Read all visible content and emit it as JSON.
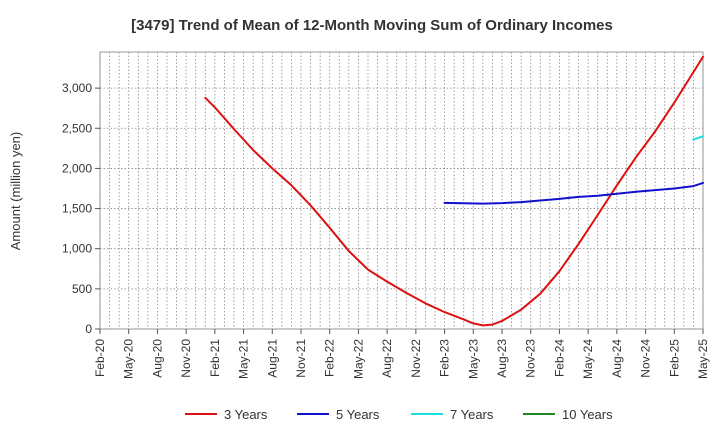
{
  "chart_data": {
    "type": "line",
    "title": "[3479]  Trend of Mean of 12-Month Moving Sum of Ordinary Incomes",
    "ylabel": "Amount (million yen)",
    "xlabel": "",
    "ylim": [
      0,
      3450
    ],
    "yticks": [
      0,
      500,
      1000,
      1500,
      2000,
      2500,
      3000
    ],
    "ytick_labels": [
      "0",
      "500",
      "1,000",
      "1,500",
      "2,000",
      "2,500",
      "3,000"
    ],
    "x_start": "2020-02",
    "x_end": "2025-05",
    "xtick_labels": [
      "Feb-20",
      "May-20",
      "Aug-20",
      "Nov-20",
      "Feb-21",
      "May-21",
      "Aug-21",
      "Nov-21",
      "Feb-22",
      "May-22",
      "Aug-22",
      "Nov-22",
      "Feb-23",
      "May-23",
      "Aug-23",
      "Nov-23",
      "Feb-24",
      "May-24",
      "Aug-24",
      "Nov-24",
      "Feb-25",
      "May-25"
    ],
    "grid": true,
    "legend_position": "bottom",
    "series": [
      {
        "name": "3 Years",
        "color": "#dd1111",
        "points": [
          [
            "2021-01",
            2880
          ],
          [
            "2021-02",
            2760
          ],
          [
            "2021-04",
            2490
          ],
          [
            "2021-06",
            2230
          ],
          [
            "2021-08",
            2000
          ],
          [
            "2021-10",
            1790
          ],
          [
            "2021-12",
            1540
          ],
          [
            "2022-02",
            1260
          ],
          [
            "2022-04",
            970
          ],
          [
            "2022-06",
            740
          ],
          [
            "2022-08",
            590
          ],
          [
            "2022-10",
            450
          ],
          [
            "2022-12",
            320
          ],
          [
            "2023-02",
            210
          ],
          [
            "2023-04",
            120
          ],
          [
            "2023-05",
            70
          ],
          [
            "2023-06",
            45
          ],
          [
            "2023-07",
            55
          ],
          [
            "2023-08",
            100
          ],
          [
            "2023-10",
            240
          ],
          [
            "2023-12",
            440
          ],
          [
            "2024-02",
            720
          ],
          [
            "2024-04",
            1060
          ],
          [
            "2024-06",
            1420
          ],
          [
            "2024-08",
            1790
          ],
          [
            "2024-10",
            2140
          ],
          [
            "2024-12",
            2460
          ],
          [
            "2025-02",
            2820
          ],
          [
            "2025-04",
            3200
          ],
          [
            "2025-05",
            3390
          ]
        ]
      },
      {
        "name": "5 Years",
        "color": "#1111cc",
        "points": [
          [
            "2023-02",
            1570
          ],
          [
            "2023-04",
            1565
          ],
          [
            "2023-06",
            1562
          ],
          [
            "2023-08",
            1568
          ],
          [
            "2023-10",
            1580
          ],
          [
            "2023-12",
            1600
          ],
          [
            "2024-02",
            1620
          ],
          [
            "2024-04",
            1645
          ],
          [
            "2024-06",
            1660
          ],
          [
            "2024-08",
            1685
          ],
          [
            "2024-10",
            1710
          ],
          [
            "2024-12",
            1730
          ],
          [
            "2025-02",
            1750
          ],
          [
            "2025-04",
            1780
          ],
          [
            "2025-05",
            1820
          ]
        ]
      },
      {
        "name": "7 Years",
        "color": "#22dddd",
        "points": [
          [
            "2025-04",
            2360
          ],
          [
            "2025-05",
            2400
          ]
        ]
      },
      {
        "name": "10 Years",
        "color": "#228822",
        "points": []
      }
    ]
  }
}
